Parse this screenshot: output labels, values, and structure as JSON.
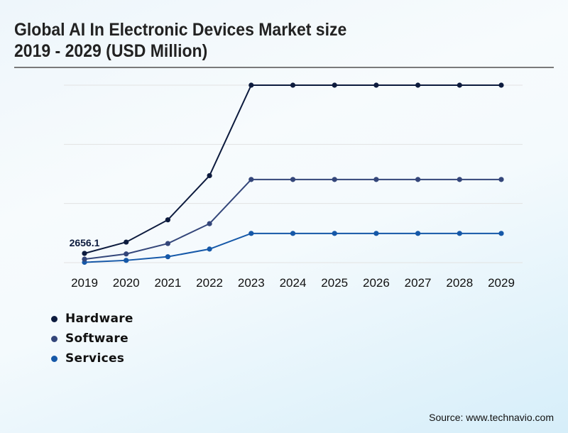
{
  "title_line1": "Global AI In Electronic Devices Market size",
  "title_line2": "2019 - 2029 (USD Million)",
  "source": "Source: www.technavio.com",
  "chart_data": {
    "type": "line",
    "title": "Global AI In Electronic Devices Market size 2019 - 2029 (USD Million)",
    "xlabel": "",
    "ylabel": "USD Million",
    "x": [
      "2019",
      "2020",
      "2021",
      "2022",
      "2023",
      "2024",
      "2025",
      "2026",
      "2027",
      "2028",
      "2029"
    ],
    "ylim": [
      0,
      51000
    ],
    "grid": true,
    "legend_position": "bottom-left",
    "annotations": [
      {
        "series": "Hardware",
        "x": "2019",
        "text": "2656.1"
      }
    ],
    "series": [
      {
        "name": "Hardware",
        "color": "#0d1b3e",
        "values": [
          2656.1,
          5900,
          12300,
          25000,
          51000,
          51000,
          51000,
          51000,
          51000,
          51000,
          51000
        ]
      },
      {
        "name": "Software",
        "color": "#34467a",
        "values": [
          1000,
          2500,
          5500,
          11200,
          23900,
          23900,
          23900,
          23900,
          23900,
          23900,
          23900
        ]
      },
      {
        "name": "Services",
        "color": "#1558a8",
        "values": [
          100,
          650,
          1700,
          3900,
          8400,
          8400,
          8400,
          8400,
          8400,
          8400,
          8400
        ]
      }
    ]
  }
}
